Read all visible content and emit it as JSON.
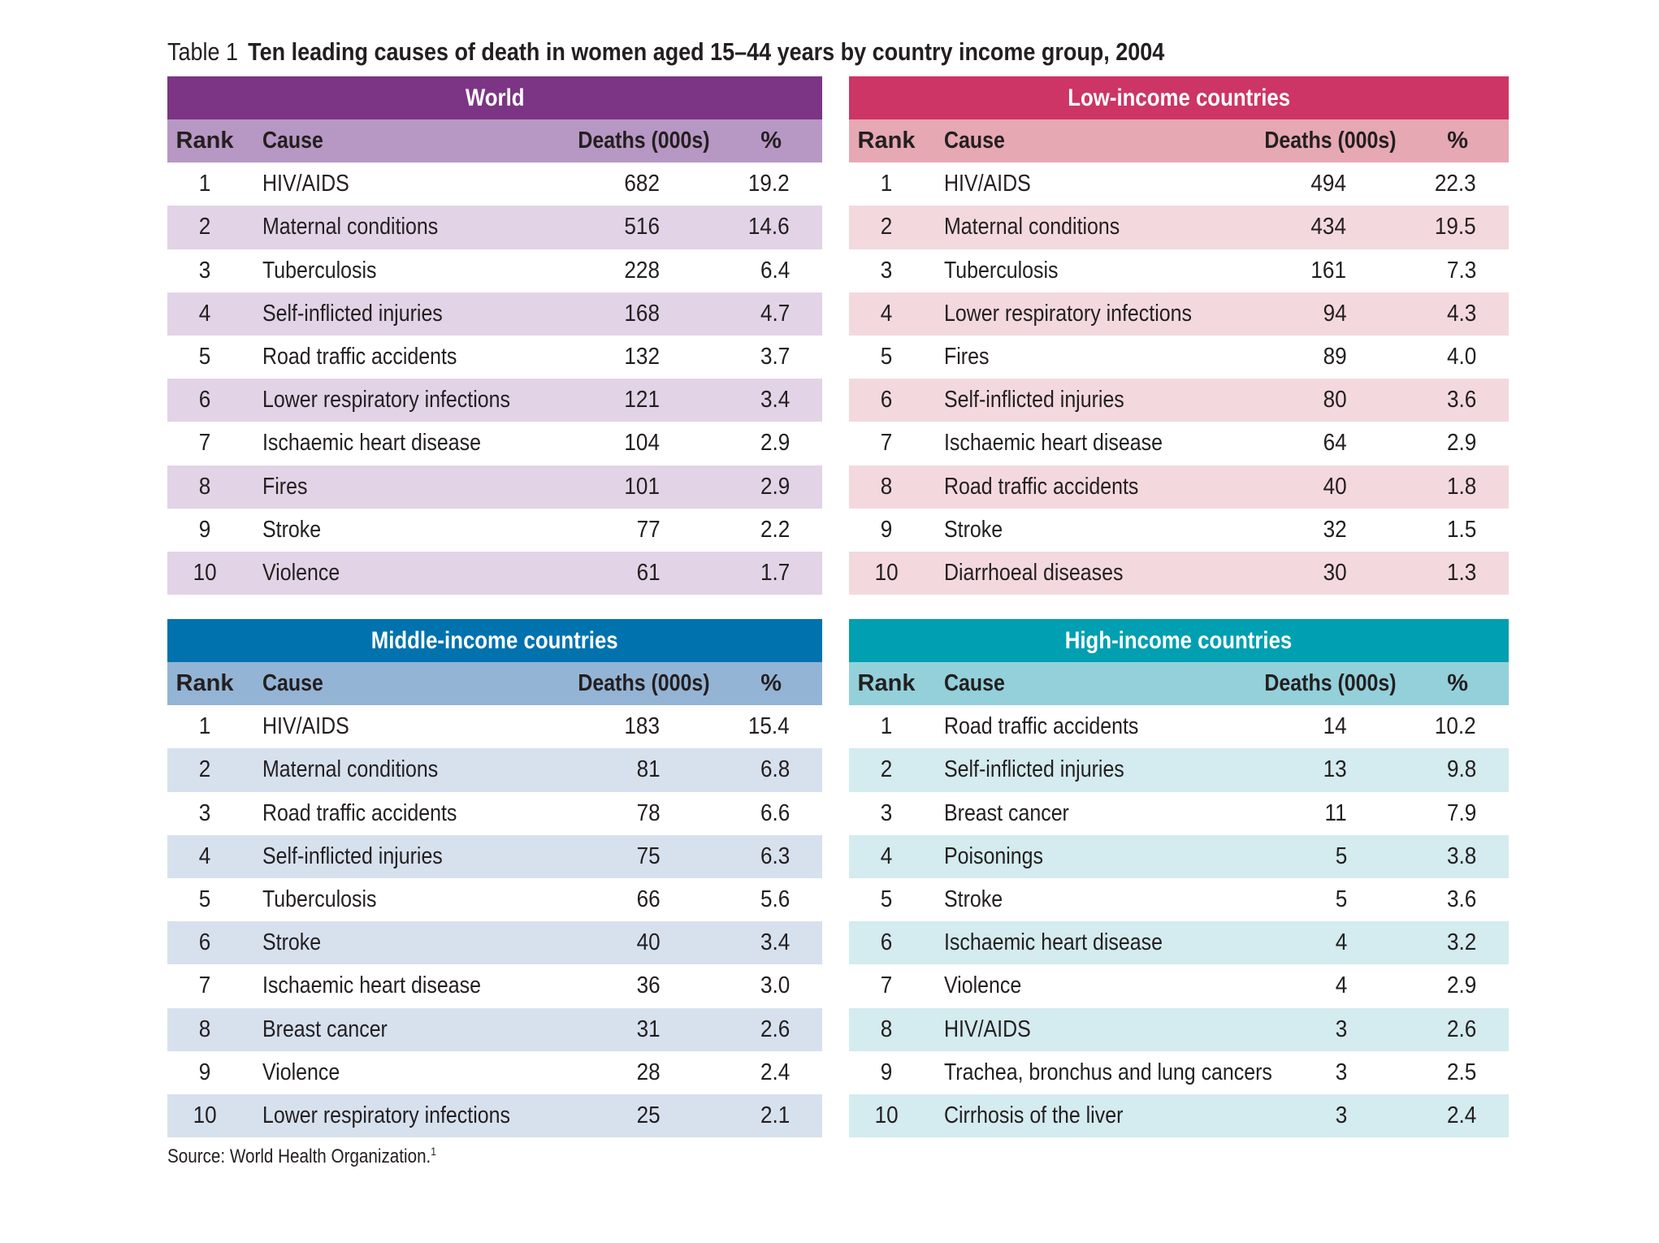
{
  "caption": {
    "label": "Table 1",
    "title": "Ten leading causes of death in women aged 15–44 years by country income group, 2004"
  },
  "headers": {
    "rank": "Rank",
    "cause": "Cause",
    "deaths": "Deaths (000s)",
    "pct": "%"
  },
  "panels": {
    "world": {
      "title": "World",
      "rows": [
        {
          "rank": "1",
          "cause": "HIV/AIDS",
          "deaths": "682",
          "pct": "19.2"
        },
        {
          "rank": "2",
          "cause": "Maternal conditions",
          "deaths": "516",
          "pct": "14.6"
        },
        {
          "rank": "3",
          "cause": "Tuberculosis",
          "deaths": "228",
          "pct": "6.4"
        },
        {
          "rank": "4",
          "cause": "Self-inflicted injuries",
          "deaths": "168",
          "pct": "4.7"
        },
        {
          "rank": "5",
          "cause": "Road traffic accidents",
          "deaths": "132",
          "pct": "3.7"
        },
        {
          "rank": "6",
          "cause": "Lower respiratory infections",
          "deaths": "121",
          "pct": "3.4"
        },
        {
          "rank": "7",
          "cause": "Ischaemic heart disease",
          "deaths": "104",
          "pct": "2.9"
        },
        {
          "rank": "8",
          "cause": "Fires",
          "deaths": "101",
          "pct": "2.9"
        },
        {
          "rank": "9",
          "cause": "Stroke",
          "deaths": "77",
          "pct": "2.2"
        },
        {
          "rank": "10",
          "cause": "Violence",
          "deaths": "61",
          "pct": "1.7"
        }
      ]
    },
    "low": {
      "title": "Low-income countries",
      "rows": [
        {
          "rank": "1",
          "cause": "HIV/AIDS",
          "deaths": "494",
          "pct": "22.3"
        },
        {
          "rank": "2",
          "cause": "Maternal conditions",
          "deaths": "434",
          "pct": "19.5"
        },
        {
          "rank": "3",
          "cause": "Tuberculosis",
          "deaths": "161",
          "pct": "7.3"
        },
        {
          "rank": "4",
          "cause": "Lower respiratory infections",
          "deaths": "94",
          "pct": "4.3"
        },
        {
          "rank": "5",
          "cause": "Fires",
          "deaths": "89",
          "pct": "4.0"
        },
        {
          "rank": "6",
          "cause": "Self-inflicted injuries",
          "deaths": "80",
          "pct": "3.6"
        },
        {
          "rank": "7",
          "cause": "Ischaemic heart disease",
          "deaths": "64",
          "pct": "2.9"
        },
        {
          "rank": "8",
          "cause": "Road traffic accidents",
          "deaths": "40",
          "pct": "1.8"
        },
        {
          "rank": "9",
          "cause": "Stroke",
          "deaths": "32",
          "pct": "1.5"
        },
        {
          "rank": "10",
          "cause": "Diarrhoeal diseases",
          "deaths": "30",
          "pct": "1.3"
        }
      ]
    },
    "middle": {
      "title": "Middle-income countries",
      "rows": [
        {
          "rank": "1",
          "cause": "HIV/AIDS",
          "deaths": "183",
          "pct": "15.4"
        },
        {
          "rank": "2",
          "cause": "Maternal conditions",
          "deaths": "81",
          "pct": "6.8"
        },
        {
          "rank": "3",
          "cause": "Road traffic accidents",
          "deaths": "78",
          "pct": "6.6"
        },
        {
          "rank": "4",
          "cause": "Self-inflicted injuries",
          "deaths": "75",
          "pct": "6.3"
        },
        {
          "rank": "5",
          "cause": "Tuberculosis",
          "deaths": "66",
          "pct": "5.6"
        },
        {
          "rank": "6",
          "cause": "Stroke",
          "deaths": "40",
          "pct": "3.4"
        },
        {
          "rank": "7",
          "cause": "Ischaemic heart disease",
          "deaths": "36",
          "pct": "3.0"
        },
        {
          "rank": "8",
          "cause": "Breast cancer",
          "deaths": "31",
          "pct": "2.6"
        },
        {
          "rank": "9",
          "cause": "Violence",
          "deaths": "28",
          "pct": "2.4"
        },
        {
          "rank": "10",
          "cause": "Lower respiratory infections",
          "deaths": "25",
          "pct": "2.1"
        }
      ]
    },
    "high": {
      "title": "High-income countries",
      "rows": [
        {
          "rank": "1",
          "cause": "Road traffic accidents",
          "deaths": "14",
          "pct": "10.2"
        },
        {
          "rank": "2",
          "cause": "Self-inflicted injuries",
          "deaths": "13",
          "pct": "9.8"
        },
        {
          "rank": "3",
          "cause": "Breast cancer",
          "deaths": "11",
          "pct": "7.9"
        },
        {
          "rank": "4",
          "cause": "Poisonings",
          "deaths": "5",
          "pct": "3.8"
        },
        {
          "rank": "5",
          "cause": "Stroke",
          "deaths": "5",
          "pct": "3.6"
        },
        {
          "rank": "6",
          "cause": "Ischaemic heart disease",
          "deaths": "4",
          "pct": "3.2"
        },
        {
          "rank": "7",
          "cause": "Violence",
          "deaths": "4",
          "pct": "2.9"
        },
        {
          "rank": "8",
          "cause": "HIV/AIDS",
          "deaths": "3",
          "pct": "2.6"
        },
        {
          "rank": "9",
          "cause": "Trachea, bronchus and lung cancers",
          "deaths": "3",
          "pct": "2.5"
        },
        {
          "rank": "10",
          "cause": "Cirrhosis of the liver",
          "deaths": "3",
          "pct": "2.4"
        }
      ]
    }
  },
  "source": {
    "text": "Source: World Health Organization.",
    "ref": "1"
  }
}
